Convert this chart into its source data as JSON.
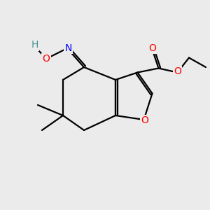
{
  "bg_color": "#ebebeb",
  "atom_colors": {
    "C": "#000000",
    "O": "#ff0000",
    "N": "#0000ff",
    "H": "#4a9090"
  },
  "bond_lw": 1.6,
  "figsize": [
    3.0,
    3.0
  ],
  "dpi": 100,
  "xlim": [
    0,
    10
  ],
  "ylim": [
    0,
    10
  ]
}
